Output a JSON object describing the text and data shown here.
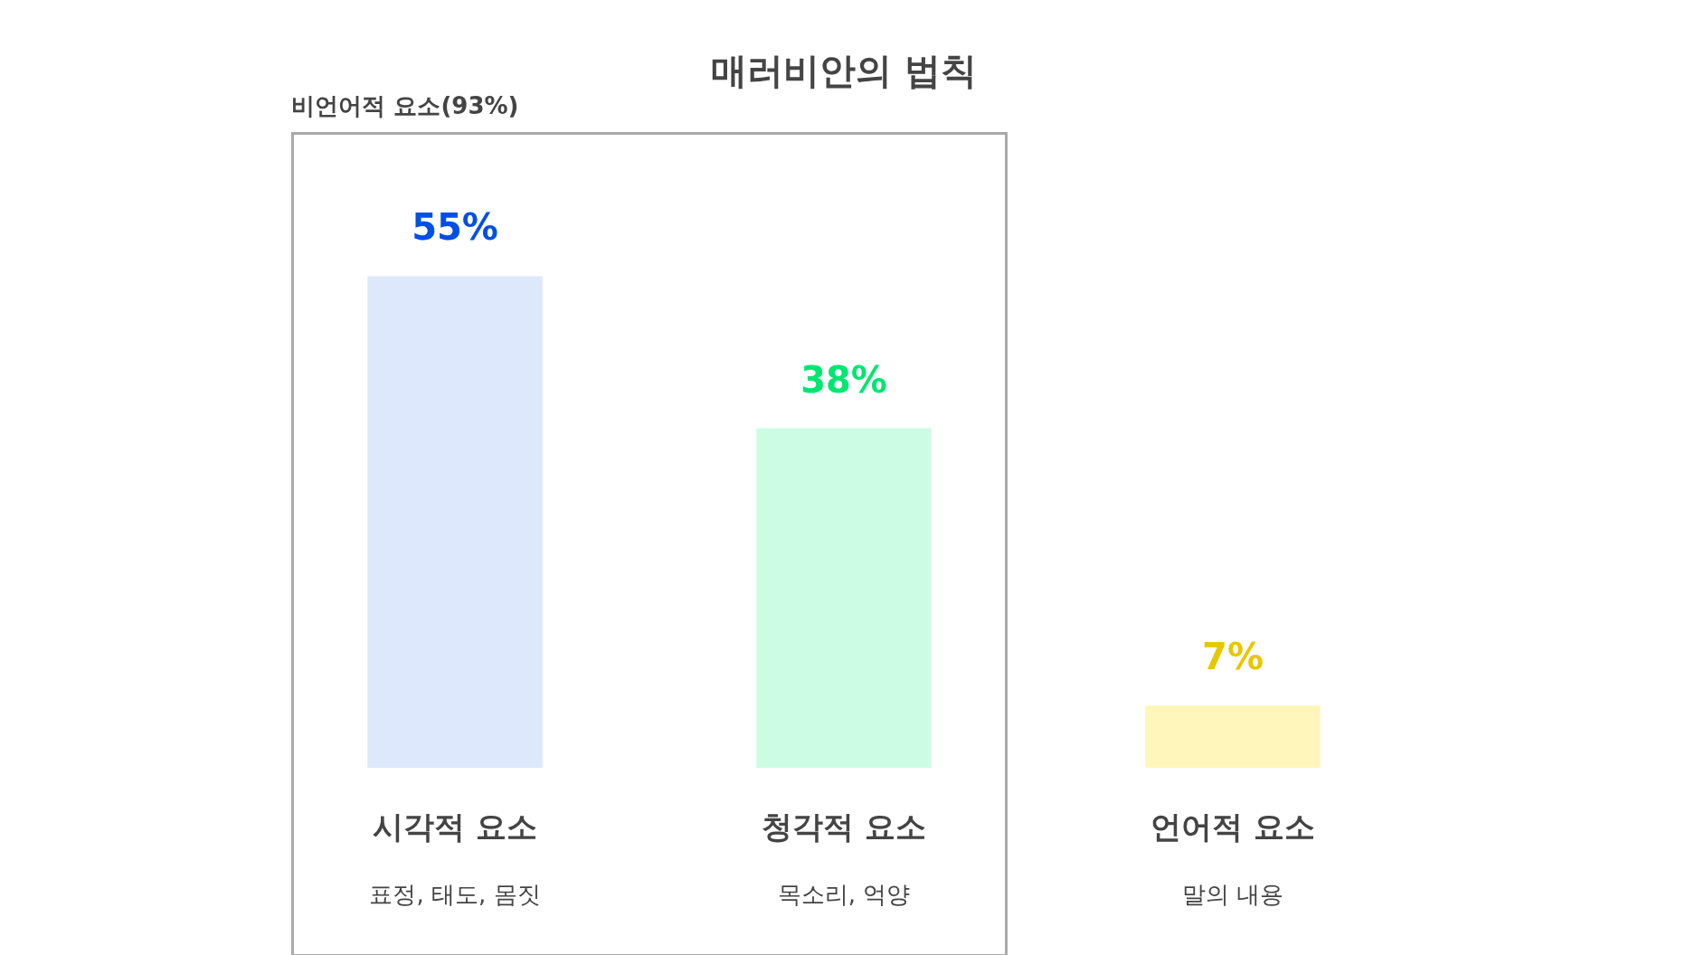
{
  "chart_data": {
    "type": "bar",
    "title": "매러비안의 법칙",
    "categories": [
      "시각적 요소",
      "청각적 요소",
      "언어적 요소"
    ],
    "values": [
      55,
      38,
      7
    ],
    "colors": [
      "#dde8fd",
      "#ccfde4",
      "#fff6bb"
    ],
    "value_labels": [
      "55%",
      "38%",
      "7%"
    ],
    "annotations": [
      "비언어적 요소(93%)",
      "표정, 태도, 몸짓",
      "목소리, 억양",
      "말의 내용"
    ]
  }
}
